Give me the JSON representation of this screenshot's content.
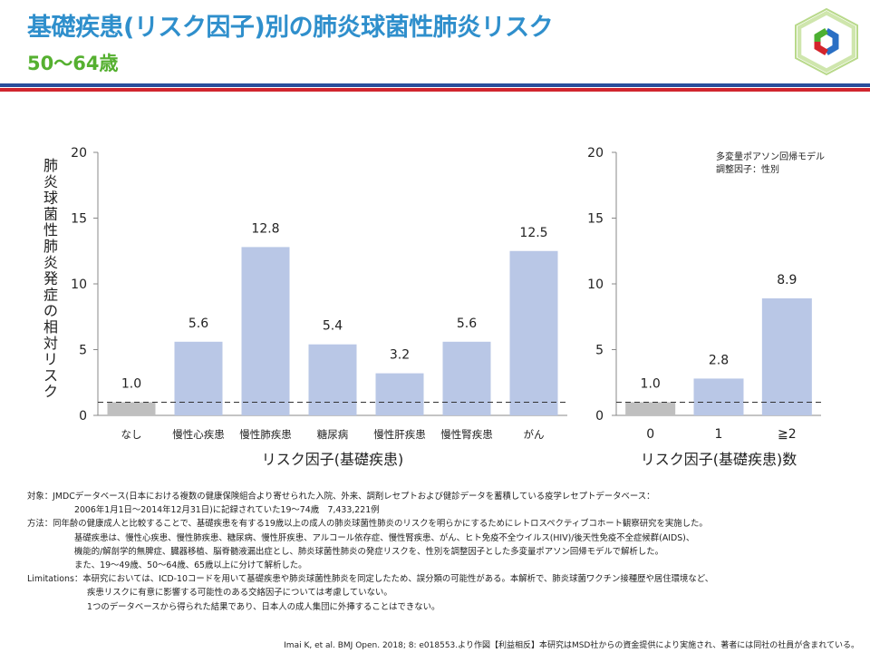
{
  "header": {
    "title": "基礎疾患(リスク因子)別の肺炎球菌性肺炎リスク",
    "subtitle": "50〜64歳"
  },
  "colors": {
    "title": "#2f8fcc",
    "subtitle": "#55b030",
    "bar": "#b9c7e6",
    "reference_bar": "#bfbfbf",
    "rule_blue": "#2a4e9b",
    "rule_red": "#d0262e"
  },
  "logo": {
    "icon": "hexagon-ring-logo-icon"
  },
  "chart_data": [
    {
      "type": "bar",
      "title": "",
      "xlabel": "リスク因子(基礎疾患)",
      "ylabel": "肺炎球菌性肺炎発症の相対リスク",
      "ylim": [
        0,
        20
      ],
      "yticks": [
        0,
        5,
        10,
        15,
        20
      ],
      "categories": [
        "なし",
        "慢性心疾患",
        "慢性肺疾患",
        "糖尿病",
        "慢性肝疾患",
        "慢性腎疾患",
        "がん"
      ],
      "values": [
        1.0,
        5.6,
        12.8,
        5.4,
        3.2,
        5.6,
        12.5
      ],
      "data_labels": [
        "1.0",
        "5.6",
        "12.8",
        "5.4",
        "3.2",
        "5.6",
        "12.5"
      ],
      "reference_line": 1.0,
      "reference_category": "なし",
      "grid": false
    },
    {
      "type": "bar",
      "title": "",
      "xlabel": "リスク因子(基礎疾患)数",
      "ylim": [
        0,
        20
      ],
      "yticks": [
        0,
        5,
        10,
        15,
        20
      ],
      "categories": [
        "0",
        "1",
        "≧2"
      ],
      "values": [
        1.0,
        2.8,
        8.9
      ],
      "data_labels": [
        "1.0",
        "2.8",
        "8.9"
      ],
      "reference_line": 1.0,
      "reference_category": "0",
      "annotations": [
        "多変量ポアソン回帰モデル",
        "調整因子：性別"
      ],
      "grid": false
    }
  ],
  "notes": {
    "target_label": "対象：",
    "target_line1": "JMDCデータベース(日本における複数の健康保険組合より寄せられた入院、外来、調剤レセプトおよび健診データを蓄積している疫学レセプトデータベース：",
    "target_line2": "2006年1月1日〜2014年12月31日)に記録されていた19〜74歳　7,433,221例",
    "method_label": "方法：",
    "method_line1": "同年齢の健康成人と比較することで、基礎疾患を有する19歳以上の成人の肺炎球菌性肺炎のリスクを明らかにするためにレトロスペクティブコホート観察研究を実施した。",
    "method_line2": "基礎疾患は、慢性心疾患、慢性肺疾患、糖尿病、慢性肝疾患、アルコール依存症、慢性腎疾患、がん、ヒト免疫不全ウイルス(HIV)/後天性免疫不全症候群(AIDS)、",
    "method_line3": "機能的/解剖学的無脾症、臓器移植、脳脊髄液漏出症とし、肺炎球菌性肺炎の発症リスクを、性別を調整因子とした多変量ポアソン回帰モデルで解析した。",
    "method_line4": "また、19〜49歳、50〜64歳、65歳以上に分けて解析した。",
    "limitations_label": "Limitations：",
    "limitations_line1": "本研究においては、ICD-10コードを用いて基礎疾患や肺炎球菌性肺炎を同定したため、誤分類の可能性がある。本解析で、肺炎球菌ワクチン接種歴や居住環境など、",
    "limitations_line2": "疾患リスクに有意に影響する可能性のある交絡因子については考慮していない。",
    "limitations_line3": "1つのデータベースから得られた結果であり、日本人の成人集団に外挿することはできない。"
  },
  "citation": "Imai K, et al. BMJ Open. 2018; 8: e018553.より作図【利益相反】本研究はMSD社からの資金提供により実施され、著者には同社の社員が含まれている。"
}
